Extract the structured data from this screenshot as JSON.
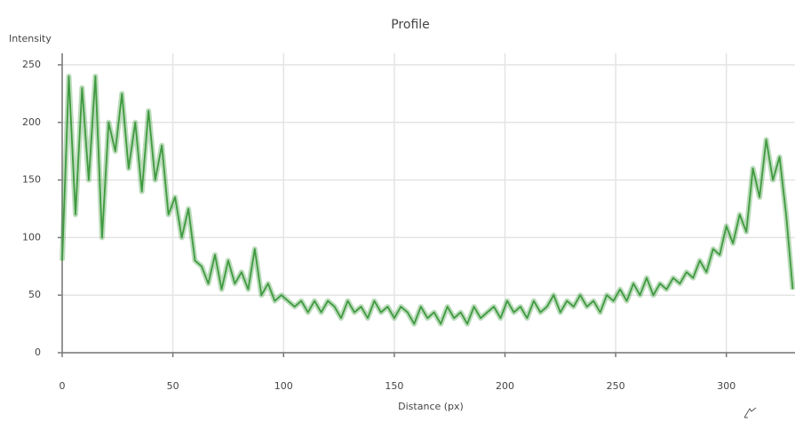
{
  "chart_data": {
    "type": "line",
    "title": "Profile",
    "x_label": "Distance (px)",
    "y_label": "Intensity",
    "x": [
      0,
      3,
      6,
      9,
      12,
      15,
      18,
      21,
      24,
      27,
      30,
      33,
      36,
      39,
      42,
      45,
      48,
      51,
      54,
      57,
      60,
      63,
      66,
      69,
      72,
      75,
      78,
      81,
      84,
      87,
      90,
      93,
      96,
      99,
      102,
      105,
      108,
      111,
      114,
      117,
      120,
      123,
      126,
      129,
      132,
      135,
      138,
      141,
      144,
      147,
      150,
      153,
      156,
      159,
      162,
      165,
      168,
      171,
      174,
      177,
      180,
      183,
      186,
      189,
      192,
      195,
      198,
      201,
      204,
      207,
      210,
      213,
      216,
      219,
      222,
      225,
      228,
      231,
      234,
      237,
      240,
      243,
      246,
      249,
      252,
      255,
      258,
      261,
      264,
      267,
      270,
      273,
      276,
      279,
      282,
      285,
      288,
      291,
      294,
      297,
      300,
      303,
      306,
      309,
      312,
      315,
      318,
      321,
      324,
      327,
      330
    ],
    "series": [
      {
        "color": "#3f9a3f",
        "values": [
          80,
          240,
          120,
          230,
          150,
          240,
          100,
          200,
          175,
          225,
          160,
          200,
          140,
          210,
          150,
          180,
          120,
          135,
          100,
          125,
          80,
          75,
          60,
          85,
          55,
          80,
          60,
          70,
          55,
          90,
          50,
          60,
          45,
          50,
          45,
          40,
          45,
          35,
          45,
          35,
          45,
          40,
          30,
          45,
          35,
          40,
          30,
          45,
          35,
          40,
          30,
          40,
          35,
          25,
          40,
          30,
          35,
          25,
          40,
          30,
          35,
          25,
          40,
          30,
          35,
          40,
          30,
          45,
          35,
          40,
          30,
          45,
          35,
          40,
          50,
          35,
          45,
          40,
          50,
          40,
          45,
          35,
          50,
          45,
          55,
          45,
          60,
          50,
          65,
          50,
          60,
          55,
          65,
          60,
          70,
          65,
          80,
          70,
          90,
          85,
          110,
          95,
          120,
          105,
          160,
          135,
          185,
          150,
          170,
          120,
          55
        ]
      }
    ],
    "xlim": [
      0,
      331
    ],
    "ylim": [
      0,
      260
    ],
    "xticks": [
      0,
      50,
      100,
      150,
      200,
      250,
      300
    ],
    "yticks": [
      0,
      50,
      100,
      150,
      200,
      250
    ],
    "grid": true
  }
}
